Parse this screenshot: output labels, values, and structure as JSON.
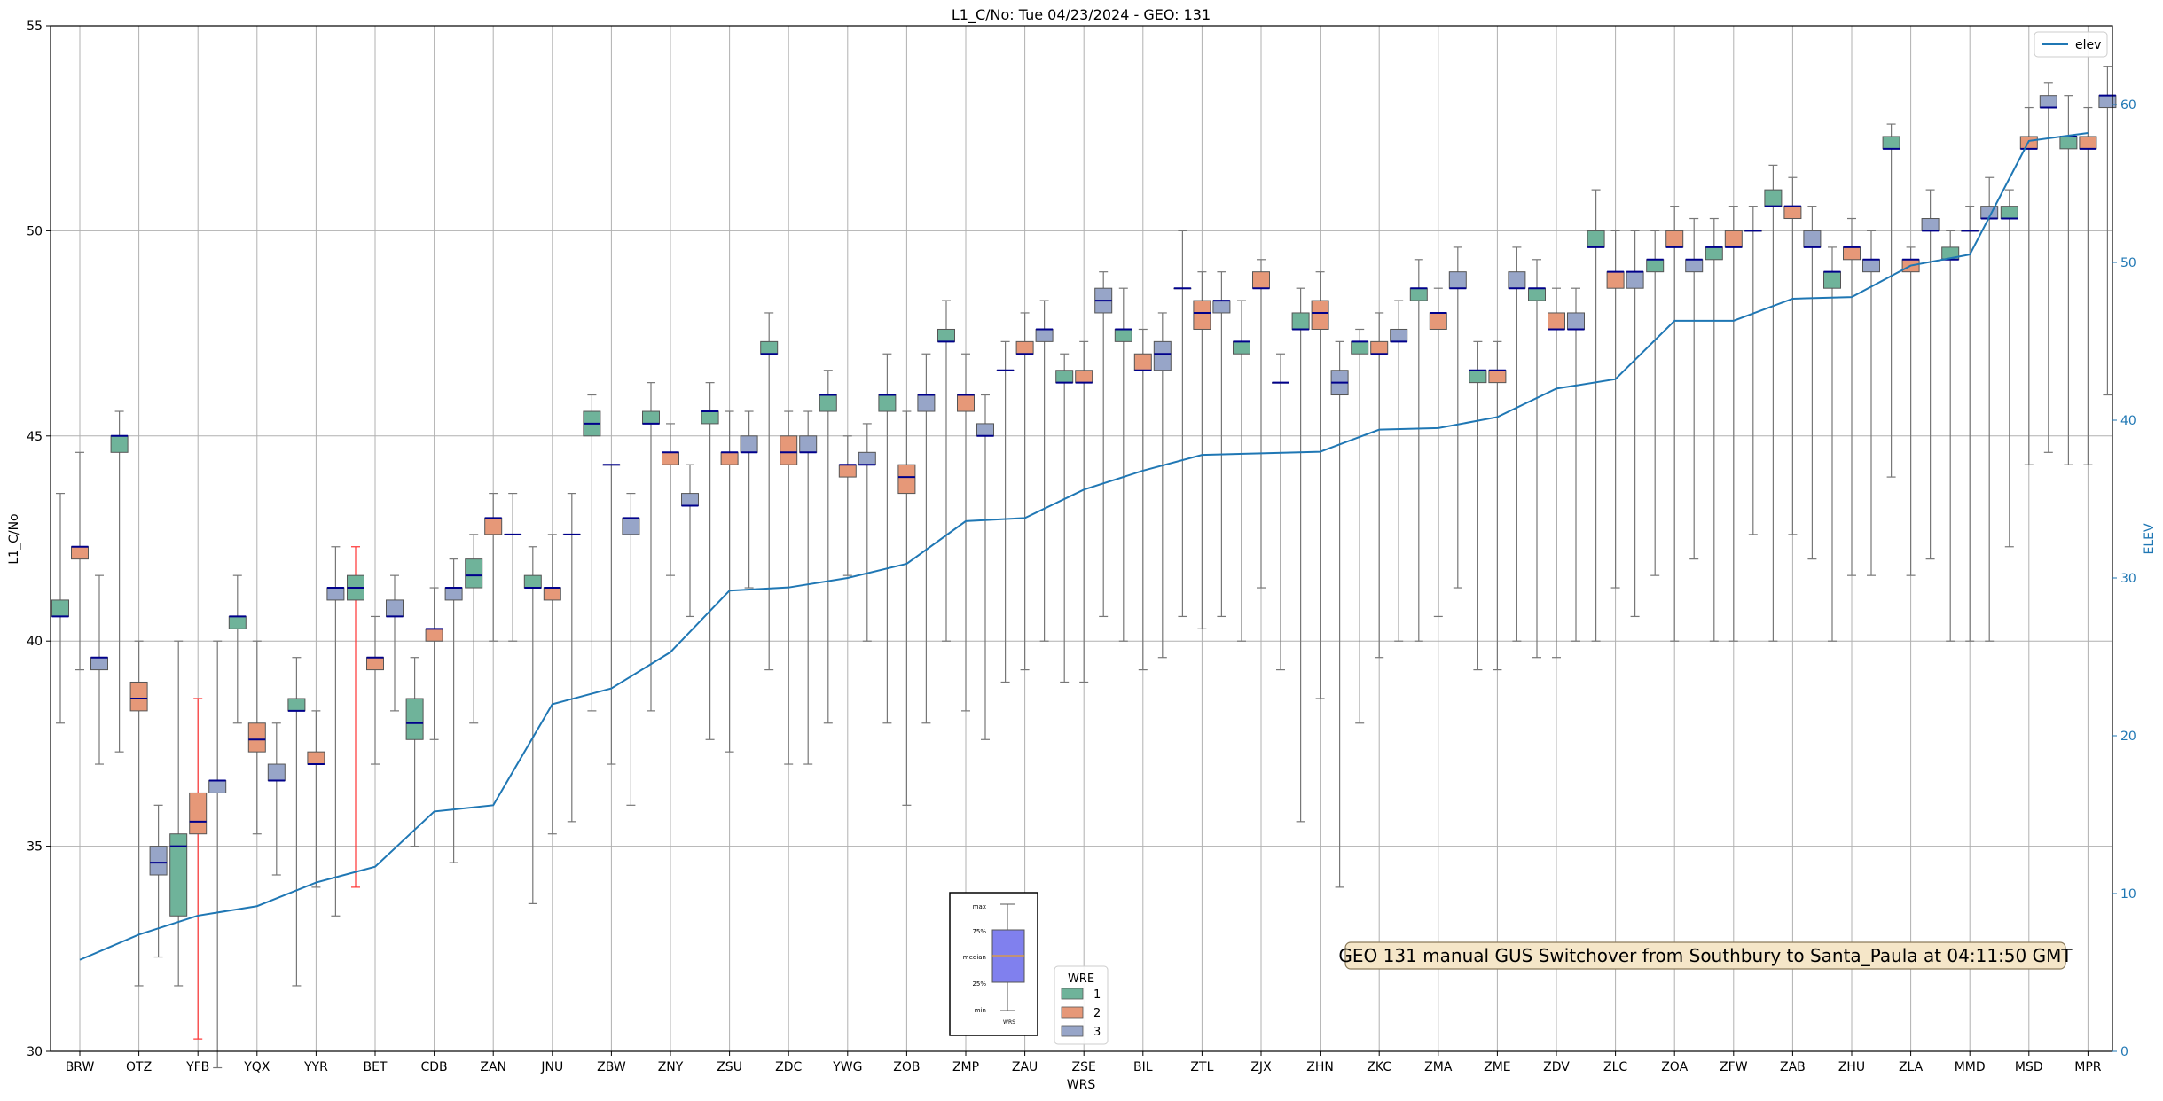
{
  "chart_data": {
    "type": "box",
    "title": "L1_C/No: Tue 04/23/2024 - GEO: 131",
    "xlabel": "WRS",
    "ylabel": "L1_C/No",
    "y2label": "ELEV",
    "ylim": [
      30,
      55
    ],
    "y2lim": [
      0,
      65
    ],
    "yticks": [
      30,
      35,
      40,
      45,
      50,
      55
    ],
    "y2ticks": [
      0,
      10,
      20,
      30,
      40,
      50,
      60
    ],
    "grid": true,
    "categories": [
      "BRW",
      "OTZ",
      "YFB",
      "YQX",
      "YYR",
      "BET",
      "CDB",
      "ZAN",
      "JNU",
      "ZBW",
      "ZNY",
      "ZSU",
      "ZDC",
      "YWG",
      "ZOB",
      "ZMP",
      "ZAU",
      "ZSE",
      "BIL",
      "ZTL",
      "ZJX",
      "ZHN",
      "ZKC",
      "ZMA",
      "ZME",
      "ZDV",
      "ZLC",
      "ZOA",
      "ZFW",
      "ZAB",
      "ZHU",
      "ZLA",
      "MMD",
      "MSD",
      "MPR"
    ],
    "wre_colors": {
      "1": "#6fb39a",
      "2": "#e69878",
      "3": "#97a5c8"
    },
    "median_color": "#00008b",
    "whisker_color": "#777777",
    "outlier_whisker_color": "#ff3333",
    "elev_color": "#1f77b4",
    "series": [
      {
        "name": "1",
        "stats": [
          [
            38,
            40.6,
            40.6,
            41.0,
            43.6
          ],
          [
            37.3,
            44.6,
            45.0,
            45.0,
            45.6
          ],
          [
            31.6,
            33.3,
            35.0,
            35.3,
            40.0
          ],
          [
            38,
            40.3,
            40.6,
            40.6,
            41.6
          ],
          [
            31.6,
            38.3,
            38.3,
            38.6,
            39.6
          ],
          [
            34,
            41.0,
            41.3,
            41.6,
            42.3
          ],
          [
            35,
            37.6,
            38.0,
            38.6,
            39.6
          ],
          [
            38,
            41.3,
            41.6,
            42.0,
            42.6
          ],
          [
            33.6,
            41.3,
            41.3,
            41.6,
            42.3
          ],
          [
            38.3,
            45.0,
            45.3,
            45.6,
            46.0
          ],
          [
            38.3,
            45.3,
            45.3,
            45.6,
            46.3
          ],
          [
            37.6,
            45.3,
            45.6,
            45.6,
            46.3
          ],
          [
            39.3,
            47.0,
            47.0,
            47.3,
            48.0
          ],
          [
            38,
            45.6,
            46.0,
            46.0,
            46.6
          ],
          [
            38,
            45.6,
            46.0,
            46.0,
            47.0
          ],
          [
            40,
            47.3,
            47.3,
            47.6,
            48.3
          ],
          [
            39.0,
            46.6,
            46.6,
            46.6,
            47.3
          ],
          [
            39.0,
            46.3,
            46.3,
            46.6,
            47.0
          ],
          [
            40.0,
            47.3,
            47.6,
            47.6,
            48.6
          ],
          [
            40.6,
            48.6,
            48.6,
            48.6,
            50.0
          ],
          [
            40.0,
            47.0,
            47.3,
            47.3,
            48.3
          ],
          [
            35.6,
            47.6,
            47.6,
            48.0,
            48.6
          ],
          [
            38.0,
            47.0,
            47.3,
            47.3,
            47.6
          ],
          [
            40.0,
            48.3,
            48.6,
            48.6,
            49.3
          ],
          [
            39.3,
            46.3,
            46.6,
            46.6,
            47.3
          ],
          [
            39.6,
            48.3,
            48.6,
            48.6,
            49.3
          ],
          [
            40.0,
            49.6,
            49.6,
            50.0,
            51.0
          ],
          [
            41.6,
            49.0,
            49.3,
            49.3,
            50.0
          ],
          [
            40.0,
            49.3,
            49.6,
            49.6,
            50.3
          ],
          [
            40.0,
            50.6,
            50.6,
            51.0,
            51.6
          ],
          [
            40.0,
            48.6,
            49.0,
            49.0,
            49.6
          ],
          [
            44.0,
            52.0,
            52.0,
            52.3,
            52.6
          ],
          [
            40.0,
            49.3,
            49.3,
            49.6,
            50.0
          ],
          [
            42.3,
            50.3,
            50.3,
            50.6,
            51.0
          ],
          [
            44.3,
            52.0,
            52.3,
            52.3,
            53.3
          ]
        ]
      },
      {
        "name": "2",
        "stats": [
          [
            39.3,
            42.0,
            42.3,
            42.3,
            44.6
          ],
          [
            31.6,
            38.3,
            38.6,
            39.0,
            40.0
          ],
          [
            30.3,
            35.3,
            35.6,
            36.3,
            38.6
          ],
          [
            35.3,
            37.3,
            37.6,
            38.0,
            40.0
          ],
          [
            34.0,
            37.0,
            37.0,
            37.3,
            38.3
          ],
          [
            37.0,
            39.3,
            39.6,
            39.6,
            40.6
          ],
          [
            37.6,
            40.0,
            40.3,
            40.3,
            41.3
          ],
          [
            40.0,
            42.6,
            43.0,
            43.0,
            43.6
          ],
          [
            35.3,
            41.0,
            41.3,
            41.3,
            42.6
          ],
          [
            37.0,
            44.3,
            44.3,
            44.3,
            44.3
          ],
          [
            41.6,
            44.3,
            44.6,
            44.6,
            45.3
          ],
          [
            37.3,
            44.3,
            44.6,
            44.6,
            45.6
          ],
          [
            37.0,
            44.3,
            44.6,
            45.0,
            45.6
          ],
          [
            41.6,
            44.0,
            44.3,
            44.3,
            45.0
          ],
          [
            36.0,
            43.6,
            44.0,
            44.3,
            45.6
          ],
          [
            38.3,
            45.6,
            46.0,
            46.0,
            47.0
          ],
          [
            39.3,
            47.0,
            47.0,
            47.3,
            48.0
          ],
          [
            39.0,
            46.3,
            46.3,
            46.6,
            47.3
          ],
          [
            39.3,
            46.6,
            46.6,
            47.0,
            47.6
          ],
          [
            40.3,
            47.6,
            48.0,
            48.3,
            49.0
          ],
          [
            41.3,
            48.6,
            48.6,
            49.0,
            49.3
          ],
          [
            38.6,
            47.6,
            48.0,
            48.3,
            49.0
          ],
          [
            39.6,
            47.0,
            47.0,
            47.3,
            48.0
          ],
          [
            40.6,
            47.6,
            48.0,
            48.0,
            48.6
          ],
          [
            39.3,
            46.3,
            46.6,
            46.6,
            47.3
          ],
          [
            39.6,
            47.6,
            47.6,
            48.0,
            48.6
          ],
          [
            41.3,
            48.6,
            49.0,
            49.0,
            50.0
          ],
          [
            40.0,
            49.6,
            49.6,
            50.0,
            50.6
          ],
          [
            40.0,
            49.6,
            49.6,
            50.0,
            50.6
          ],
          [
            42.6,
            50.3,
            50.6,
            50.6,
            51.3
          ],
          [
            41.6,
            49.3,
            49.6,
            49.6,
            50.3
          ],
          [
            41.6,
            49.0,
            49.3,
            49.3,
            49.6
          ],
          [
            40.0,
            50.0,
            50.0,
            50.0,
            50.6
          ],
          [
            44.3,
            52.0,
            52.0,
            52.3,
            53.0
          ],
          [
            44.3,
            52.0,
            52.0,
            52.3,
            53.0
          ]
        ]
      },
      {
        "name": "3",
        "stats": [
          [
            37.0,
            39.3,
            39.6,
            39.6,
            41.6
          ],
          [
            32.3,
            34.3,
            34.6,
            35.0,
            36.0
          ],
          [
            29.6,
            36.3,
            36.6,
            36.6,
            40.0
          ],
          [
            34.3,
            36.6,
            36.6,
            37.0,
            38.0
          ],
          [
            33.3,
            41.0,
            41.3,
            41.3,
            42.3
          ],
          [
            38.3,
            40.6,
            40.6,
            41.0,
            41.6
          ],
          [
            34.6,
            41.0,
            41.3,
            41.3,
            42.0
          ],
          [
            40.0,
            42.6,
            42.6,
            42.6,
            43.6
          ],
          [
            35.6,
            42.6,
            42.6,
            42.6,
            43.6
          ],
          [
            36.0,
            42.6,
            43.0,
            43.0,
            43.6
          ],
          [
            40.6,
            43.3,
            43.3,
            43.6,
            44.3
          ],
          [
            41.3,
            44.6,
            44.6,
            45.0,
            45.6
          ],
          [
            37.0,
            44.6,
            44.6,
            45.0,
            45.6
          ],
          [
            40.0,
            44.3,
            44.3,
            44.6,
            45.3
          ],
          [
            38.0,
            45.6,
            46.0,
            46.0,
            47.0
          ],
          [
            37.6,
            45.0,
            45.0,
            45.3,
            46.0
          ],
          [
            40.0,
            47.3,
            47.6,
            47.6,
            48.3
          ],
          [
            40.6,
            48.0,
            48.3,
            48.6,
            49.0
          ],
          [
            39.6,
            46.6,
            47.0,
            47.3,
            48.0
          ],
          [
            40.6,
            48.0,
            48.3,
            48.3,
            49.0
          ],
          [
            39.3,
            46.3,
            46.3,
            46.3,
            47.0
          ],
          [
            34.0,
            46.0,
            46.3,
            46.6,
            47.3
          ],
          [
            40.0,
            47.3,
            47.3,
            47.6,
            48.3
          ],
          [
            41.3,
            48.6,
            48.6,
            49.0,
            49.6
          ],
          [
            40.0,
            48.6,
            48.6,
            49.0,
            49.6
          ],
          [
            40.0,
            47.6,
            47.6,
            48.0,
            48.6
          ],
          [
            40.6,
            48.6,
            49.0,
            49.0,
            50.0
          ],
          [
            42.0,
            49.0,
            49.3,
            49.3,
            50.3
          ],
          [
            42.6,
            50.0,
            50.0,
            50.0,
            50.6
          ],
          [
            42.0,
            49.6,
            49.6,
            50.0,
            50.6
          ],
          [
            41.6,
            49.0,
            49.3,
            49.3,
            50.0
          ],
          [
            42.0,
            50.0,
            50.0,
            50.3,
            51.0
          ],
          [
            40.0,
            50.3,
            50.3,
            50.6,
            51.3
          ],
          [
            44.6,
            53.0,
            53.0,
            53.3,
            53.6
          ],
          [
            46.0,
            53.0,
            53.3,
            53.3,
            54.0
          ]
        ]
      },
      {
        "name": "elev",
        "axis": "right",
        "values": [
          5.8,
          7.4,
          8.6,
          9.2,
          10.7,
          11.7,
          15.2,
          15.6,
          22.0,
          23.0,
          25.3,
          29.2,
          29.4,
          30.0,
          30.9,
          33.6,
          33.8,
          35.6,
          36.8,
          37.8,
          37.9,
          38.0,
          39.4,
          39.5,
          40.2,
          42.0,
          42.6,
          46.3,
          46.3,
          47.7,
          47.8,
          49.8,
          50.5,
          57.7,
          58.2
        ]
      }
    ],
    "outlier_whiskers": [
      [
        2,
        1
      ],
      [
        5,
        0
      ]
    ],
    "legend_wre": {
      "title": "WRE",
      "entries": [
        "1",
        "2",
        "3"
      ]
    },
    "legend_elev": {
      "entries": [
        "elev"
      ],
      "position": "top-right"
    },
    "key_box": {
      "labels": [
        "max",
        "75%",
        "median",
        "25%",
        "min"
      ],
      "xlabel": "WRS"
    },
    "annotation": "GEO 131 manual GUS Switchover from Southbury to Santa_Paula at 04:11:50 GMT"
  }
}
